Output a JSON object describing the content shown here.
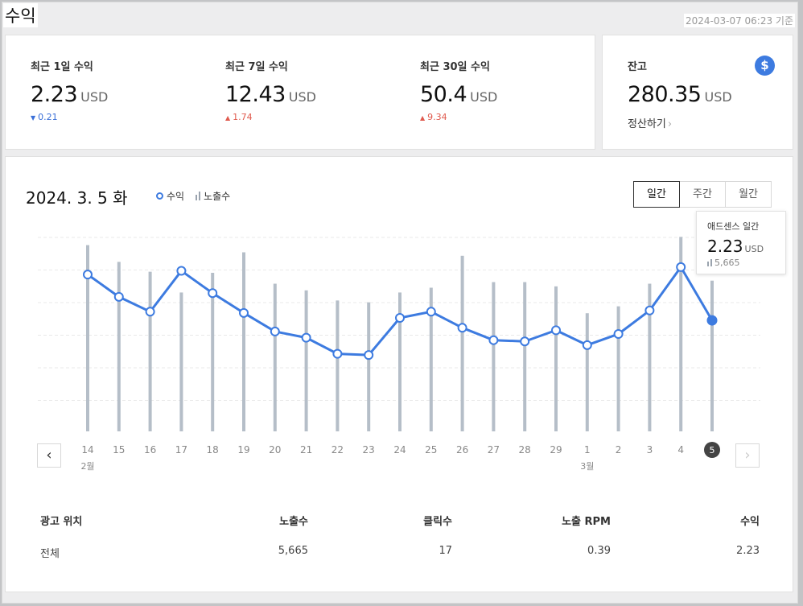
{
  "page": {
    "title": "수익",
    "updated": "2024-03-07 06:23 기준"
  },
  "stats": [
    {
      "label": "최근 1일 수익",
      "value": "2.23",
      "unit": "USD",
      "delta": "0.21",
      "direction": "down"
    },
    {
      "label": "최근 7일 수익",
      "value": "12.43",
      "unit": "USD",
      "delta": "1.74",
      "direction": "up"
    },
    {
      "label": "최근 30일 수익",
      "value": "50.4",
      "unit": "USD",
      "delta": "9.34",
      "direction": "up"
    }
  ],
  "balance": {
    "label": "잔고",
    "value": "280.35",
    "unit": "USD",
    "settle_label": "정산하기",
    "icon": "dollar-icon"
  },
  "chart_header": {
    "date": "2024. 3. 5",
    "weekday": "화",
    "legend_revenue": "수익",
    "legend_impressions": "노출수"
  },
  "period_tabs": [
    {
      "label": "일간",
      "active": true
    },
    {
      "label": "주간",
      "active": false
    },
    {
      "label": "월간",
      "active": false
    }
  ],
  "tooltip": {
    "title": "애드센스 일간",
    "value": "2.23",
    "unit": "USD",
    "impressions": "5,665"
  },
  "colors": {
    "accent": "#3d7be0",
    "bar": "#b5bec8",
    "up": "#e05a4e",
    "down": "#3a6fd8"
  },
  "chart_data": {
    "type": "line",
    "x": [
      "14",
      "15",
      "16",
      "17",
      "18",
      "19",
      "20",
      "21",
      "22",
      "23",
      "24",
      "25",
      "26",
      "27",
      "28",
      "29",
      "1",
      "2",
      "3",
      "4",
      "5"
    ],
    "month_labels": [
      {
        "index": 0,
        "label": "2월"
      },
      {
        "index": 16,
        "label": "3월"
      }
    ],
    "selected_index": 20,
    "series": [
      {
        "name": "수익",
        "type": "line",
        "values": [
          2.6,
          2.42,
          2.3,
          2.63,
          2.45,
          2.29,
          2.14,
          2.09,
          1.96,
          1.95,
          2.25,
          2.3,
          2.17,
          2.07,
          2.06,
          2.15,
          2.03,
          2.12,
          2.31,
          2.66,
          2.23
        ]
      },
      {
        "name": "노출수",
        "type": "bar",
        "values": [
          7000,
          6370,
          6000,
          5220,
          5960,
          6730,
          5550,
          5300,
          4920,
          4850,
          5220,
          5400,
          6600,
          5610,
          5610,
          5450,
          4440,
          4700,
          5550,
          7310,
          5665
        ]
      }
    ]
  },
  "nav": {
    "prev": "‹",
    "next": "›"
  },
  "table": {
    "headers": [
      "광고 위치",
      "노출수",
      "클릭수",
      "노출 RPM",
      "수익"
    ],
    "rows": [
      [
        "전체",
        "5,665",
        "17",
        "0.39",
        "2.23"
      ]
    ]
  }
}
